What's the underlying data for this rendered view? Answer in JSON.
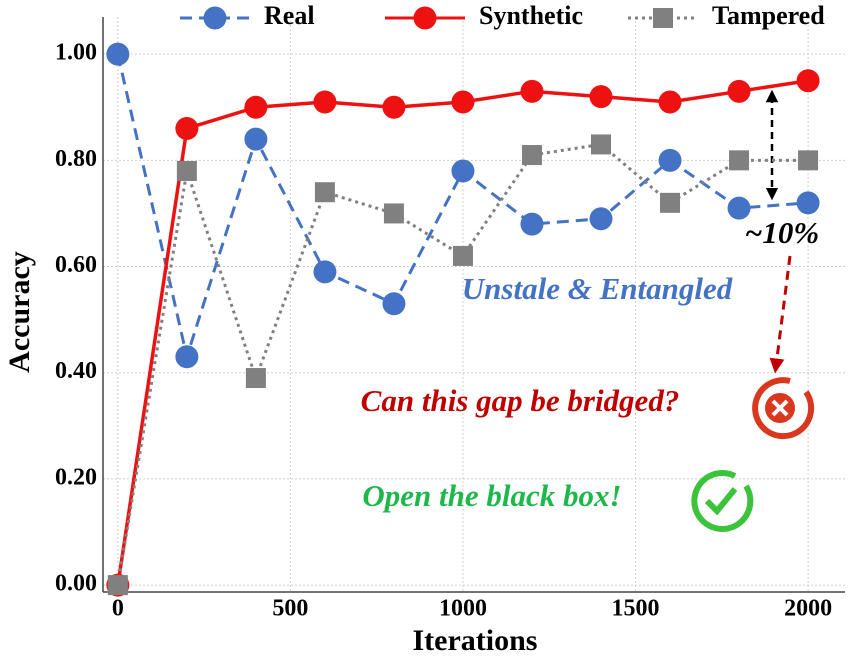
{
  "chart_data": {
    "type": "line",
    "x_label": "Iterations",
    "y_label": "Accuracy",
    "x": [
      0,
      200,
      400,
      600,
      800,
      1000,
      1200,
      1400,
      1600,
      1800,
      2000
    ],
    "series": [
      {
        "name": "Real",
        "color": "#4472c4",
        "dash": "dashed",
        "marker": "circle",
        "values": [
          1.0,
          0.43,
          0.84,
          0.59,
          0.53,
          0.78,
          0.68,
          0.69,
          0.8,
          0.71,
          0.72
        ]
      },
      {
        "name": "Synthetic",
        "color": "#ee1111",
        "dash": "solid",
        "marker": "circle",
        "values": [
          0.0,
          0.86,
          0.9,
          0.91,
          0.9,
          0.91,
          0.93,
          0.92,
          0.91,
          0.93,
          0.95
        ]
      },
      {
        "name": "Tampered",
        "color": "#808080",
        "dash": "dotted",
        "marker": "square",
        "values": [
          0.0,
          0.78,
          0.39,
          0.74,
          0.7,
          0.62,
          0.81,
          0.83,
          0.72,
          0.8,
          0.8
        ]
      }
    ],
    "xlim": [
      -43,
      2107
    ],
    "ylim": [
      -0.013,
      1.07
    ],
    "xticks": [
      0,
      500,
      1000,
      1500,
      2000
    ],
    "yticks": [
      {
        "value": 0,
        "label": "0.00"
      },
      {
        "value": 0.2,
        "label": "0.20"
      },
      {
        "value": 0.4,
        "label": "0.40"
      },
      {
        "value": 0.6,
        "label": "0.60"
      },
      {
        "value": 0.8,
        "label": "0.80"
      },
      {
        "value": 1.0,
        "label": "1.00"
      }
    ],
    "grid": true,
    "annotations": [
      "~10%",
      "Unstale & Entangled",
      "Can this gap be bridged?",
      "Open the black box!"
    ]
  }
}
